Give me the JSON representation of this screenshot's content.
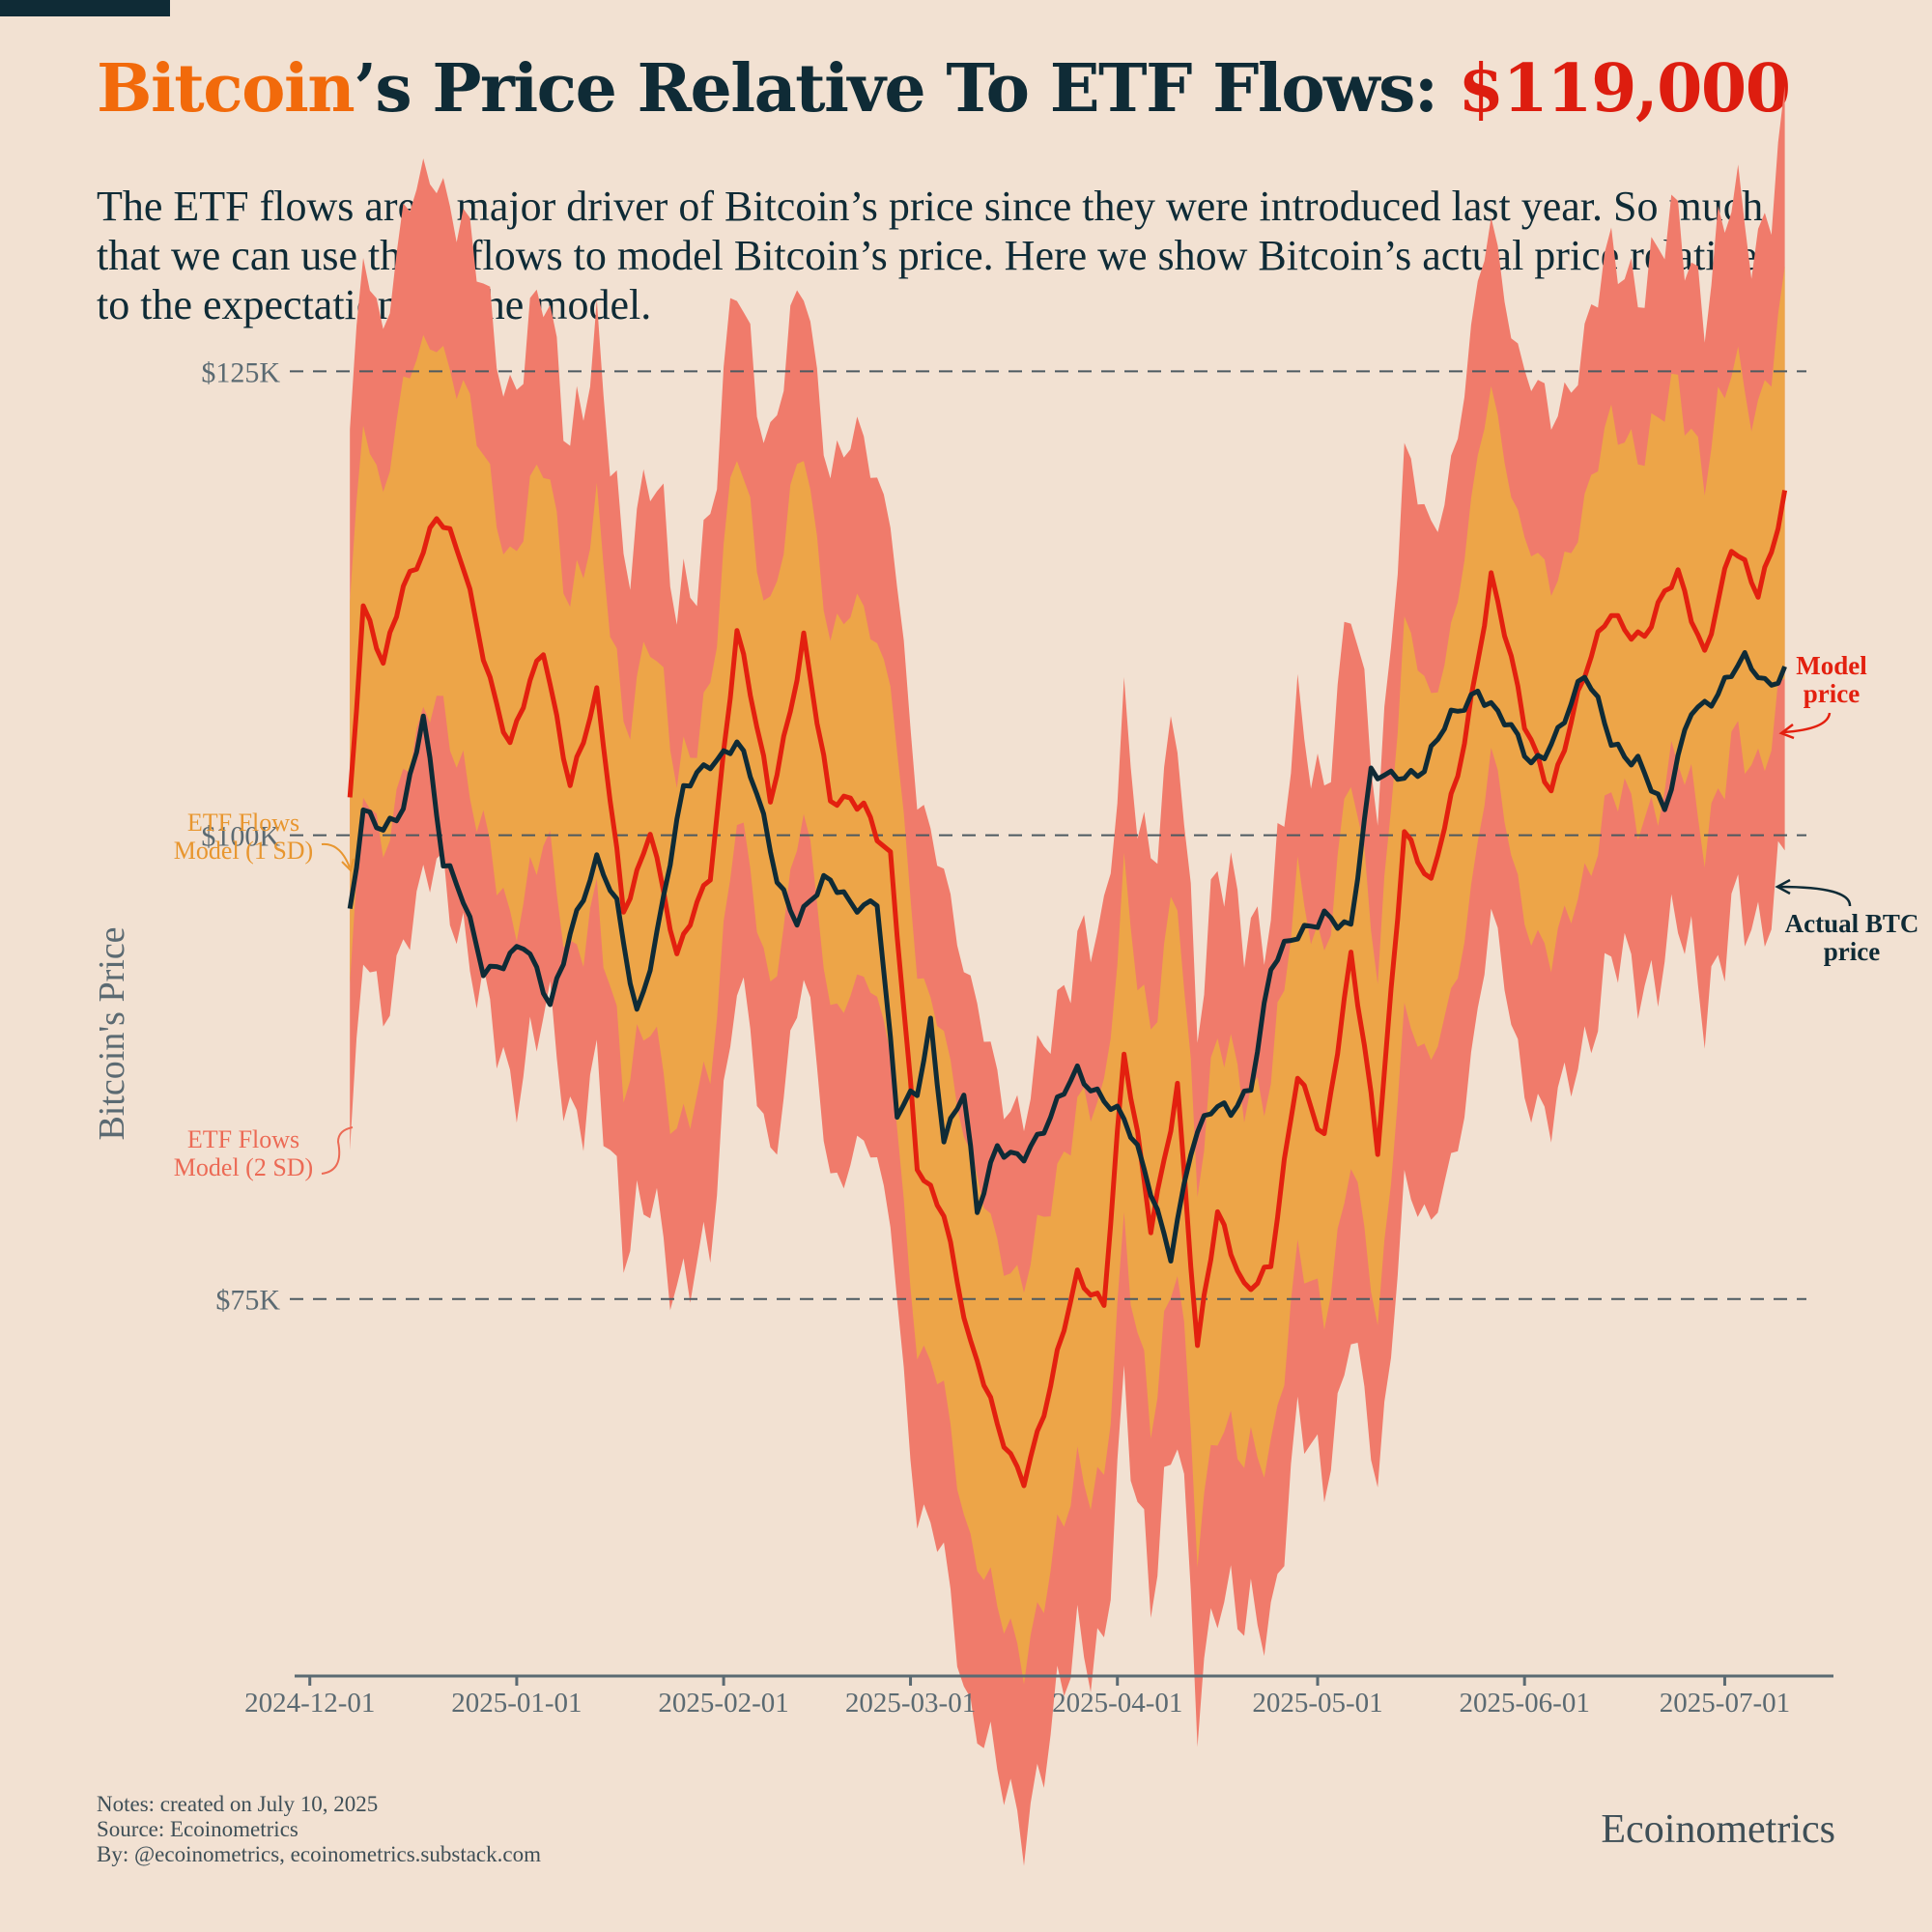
{
  "header": {
    "title_brand": "Bitcoin",
    "title_middle": "’s Price Relative To ETF Flows: ",
    "title_price": "$119,000",
    "subtitle": "The ETF flows are a major driver of Bitcoin’s price since they were introduced last year. So much that we can use those flows to model Bitcoin’s price. Here we show Bitcoin’s actual price relative to the expectations of the model."
  },
  "footer": {
    "notes": "Notes: created on July 10, 2025",
    "source": "Source: Ecoinometrics",
    "by": "By: @ecoinometrics, ecoinometrics.substack.com",
    "brand": "Ecoinometrics"
  },
  "colors": {
    "background": "#f2e1d2",
    "band_2sd": "#f07b6b",
    "band_1sd": "#eda548",
    "model_line": "#e3200f",
    "actual_line": "#0f2b36",
    "axis": "#5b6a72",
    "label_model_1sd": "#e8962f",
    "label_model_2sd": "#ec6a55",
    "brand_orange": "#f26a0b",
    "price_red": "#dd1d0f"
  },
  "chart_data": {
    "type": "line",
    "title": "Bitcoin’s Price Relative To ETF Flows: $119,000",
    "ylabel": "Bitcoin's Price",
    "xlabel": "",
    "ylim": [
      56500,
      132000
    ],
    "x_start": "2024-12-07",
    "x_end": "2025-07-10",
    "x_domain": [
      "2024-11-28",
      "2025-07-17"
    ],
    "yticks": [
      {
        "value": 75000,
        "label": "$75K"
      },
      {
        "value": 100000,
        "label": "$100K"
      },
      {
        "value": 125000,
        "label": "$125K"
      }
    ],
    "xticks": [
      {
        "date": "2024-12-01",
        "label": "2024-12-01"
      },
      {
        "date": "2025-01-01",
        "label": "2025-01-01"
      },
      {
        "date": "2025-02-01",
        "label": "2025-02-01"
      },
      {
        "date": "2025-03-01",
        "label": "2025-03-01"
      },
      {
        "date": "2025-04-01",
        "label": "2025-04-01"
      },
      {
        "date": "2025-05-01",
        "label": "2025-05-01"
      },
      {
        "date": "2025-06-01",
        "label": "2025-06-01"
      },
      {
        "date": "2025-07-01",
        "label": "2025-07-01"
      }
    ],
    "band_1sd_width": 10000,
    "band_2sd_width": 19000,
    "series": [
      {
        "name": "Model price",
        "label": "Model\nprice",
        "points": [
          [
            "2024-12-07",
            102000
          ],
          [
            "2024-12-09",
            112000
          ],
          [
            "2024-12-12",
            109000
          ],
          [
            "2024-12-15",
            114000
          ],
          [
            "2024-12-20",
            117000
          ],
          [
            "2024-12-24",
            114000
          ],
          [
            "2024-12-27",
            110000
          ],
          [
            "2024-12-31",
            105000
          ],
          [
            "2025-01-05",
            110000
          ],
          [
            "2025-01-09",
            103000
          ],
          [
            "2025-01-13",
            107000
          ],
          [
            "2025-01-17",
            96000
          ],
          [
            "2025-01-21",
            101000
          ],
          [
            "2025-01-25",
            93000
          ],
          [
            "2025-01-30",
            98000
          ],
          [
            "2025-02-03",
            111000
          ],
          [
            "2025-02-08",
            102000
          ],
          [
            "2025-02-13",
            111000
          ],
          [
            "2025-02-17",
            101000
          ],
          [
            "2025-02-22",
            102000
          ],
          [
            "2025-02-26",
            99000
          ],
          [
            "2025-03-02",
            82000
          ],
          [
            "2025-03-06",
            80000
          ],
          [
            "2025-03-10",
            72000
          ],
          [
            "2025-03-14",
            68000
          ],
          [
            "2025-03-18",
            66000
          ],
          [
            "2025-03-22",
            70000
          ],
          [
            "2025-03-26",
            76000
          ],
          [
            "2025-03-30",
            75000
          ],
          [
            "2025-04-02",
            88000
          ],
          [
            "2025-04-06",
            79000
          ],
          [
            "2025-04-10",
            87000
          ],
          [
            "2025-04-13",
            72000
          ],
          [
            "2025-04-16",
            79000
          ],
          [
            "2025-04-20",
            76000
          ],
          [
            "2025-04-24",
            77000
          ],
          [
            "2025-04-28",
            87000
          ],
          [
            "2025-05-02",
            84000
          ],
          [
            "2025-05-06",
            93000
          ],
          [
            "2025-05-10",
            83000
          ],
          [
            "2025-05-14",
            101000
          ],
          [
            "2025-05-18",
            97000
          ],
          [
            "2025-05-22",
            103000
          ],
          [
            "2025-05-27",
            114000
          ],
          [
            "2025-06-01",
            106000
          ],
          [
            "2025-06-05",
            103000
          ],
          [
            "2025-06-10",
            108000
          ],
          [
            "2025-06-14",
            112000
          ],
          [
            "2025-06-19",
            111000
          ],
          [
            "2025-06-24",
            114000
          ],
          [
            "2025-06-28",
            110000
          ],
          [
            "2025-07-02",
            115000
          ],
          [
            "2025-07-06",
            113000
          ],
          [
            "2025-07-10",
            119000
          ]
        ]
      },
      {
        "name": "Actual BTC price",
        "label": "Actual BTC\nprice",
        "points": [
          [
            "2024-12-07",
            96000
          ],
          [
            "2024-12-09",
            101000
          ],
          [
            "2024-12-12",
            100000
          ],
          [
            "2024-12-15",
            102000
          ],
          [
            "2024-12-18",
            107000
          ],
          [
            "2024-12-21",
            98000
          ],
          [
            "2024-12-24",
            96000
          ],
          [
            "2024-12-27",
            93000
          ],
          [
            "2024-12-30",
            93500
          ],
          [
            "2025-01-02",
            94000
          ],
          [
            "2025-01-06",
            91000
          ],
          [
            "2025-01-09",
            95000
          ],
          [
            "2025-01-13",
            98000
          ],
          [
            "2025-01-16",
            96000
          ],
          [
            "2025-01-19",
            91000
          ],
          [
            "2025-01-22",
            95000
          ],
          [
            "2025-01-26",
            102000
          ],
          [
            "2025-01-30",
            104000
          ],
          [
            "2025-02-03",
            105000
          ],
          [
            "2025-02-06",
            102000
          ],
          [
            "2025-02-09",
            98000
          ],
          [
            "2025-02-12",
            96000
          ],
          [
            "2025-02-16",
            97000
          ],
          [
            "2025-02-20",
            96000
          ],
          [
            "2025-02-24",
            97000
          ],
          [
            "2025-02-27",
            85000
          ],
          [
            "2025-03-02",
            86000
          ],
          [
            "2025-03-04",
            90000
          ],
          [
            "2025-03-06",
            84000
          ],
          [
            "2025-03-09",
            86000
          ],
          [
            "2025-03-11",
            79000
          ],
          [
            "2025-03-14",
            83000
          ],
          [
            "2025-03-18",
            83500
          ],
          [
            "2025-03-22",
            84500
          ],
          [
            "2025-03-26",
            87000
          ],
          [
            "2025-03-30",
            86000
          ],
          [
            "2025-04-02",
            84500
          ],
          [
            "2025-04-06",
            81000
          ],
          [
            "2025-04-09",
            78000
          ],
          [
            "2025-04-12",
            83000
          ],
          [
            "2025-04-15",
            84500
          ],
          [
            "2025-04-18",
            85000
          ],
          [
            "2025-04-21",
            87000
          ],
          [
            "2025-04-24",
            93000
          ],
          [
            "2025-04-28",
            94500
          ],
          [
            "2025-05-02",
            96000
          ],
          [
            "2025-05-06",
            94500
          ],
          [
            "2025-05-09",
            103000
          ],
          [
            "2025-05-13",
            104000
          ],
          [
            "2025-05-17",
            103500
          ],
          [
            "2025-05-21",
            106000
          ],
          [
            "2025-05-25",
            108000
          ],
          [
            "2025-05-29",
            106000
          ],
          [
            "2025-06-02",
            104000
          ],
          [
            "2025-06-06",
            106000
          ],
          [
            "2025-06-10",
            108000
          ],
          [
            "2025-06-14",
            105000
          ],
          [
            "2025-06-18",
            104500
          ],
          [
            "2025-06-22",
            101000
          ],
          [
            "2025-06-26",
            107000
          ],
          [
            "2025-06-30",
            107500
          ],
          [
            "2025-07-04",
            109000
          ],
          [
            "2025-07-07",
            108500
          ],
          [
            "2025-07-10",
            109500
          ]
        ]
      }
    ],
    "annotations": [
      {
        "name": "etf-flows-1sd-label",
        "text": "ETF Flows\nModel (1 SD)"
      },
      {
        "name": "etf-flows-2sd-label",
        "text": "ETF Flows\nModel (2 SD)"
      }
    ]
  }
}
